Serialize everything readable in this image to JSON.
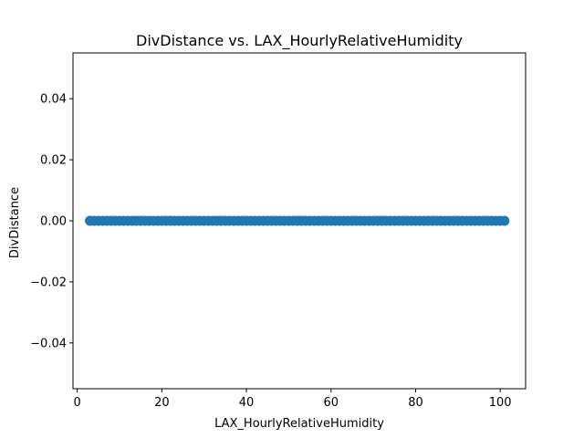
{
  "chart_data": {
    "type": "scatter",
    "title": "DivDistance vs. LAX_HourlyRelativeHumidity",
    "xlabel": "LAX_HourlyRelativeHumidity",
    "ylabel": "DivDistance",
    "xlim": [
      -1,
      106
    ],
    "ylim": [
      -0.055,
      0.055
    ],
    "xticks": [
      0,
      20,
      40,
      60,
      80,
      100
    ],
    "xtick_labels": [
      "0",
      "20",
      "40",
      "60",
      "80",
      "100"
    ],
    "yticks": [
      -0.04,
      -0.02,
      0.0,
      0.02,
      0.04
    ],
    "ytick_labels": [
      "−0.04",
      "−0.02",
      "0.00",
      "0.02",
      "0.04"
    ],
    "grid": false,
    "series": [
      {
        "color": "#1f77b4",
        "x_range": [
          3,
          101
        ],
        "y_value": 0.0,
        "points": [
          [
            3,
            0
          ],
          [
            4,
            0
          ],
          [
            5,
            0
          ],
          [
            6,
            0
          ],
          [
            7,
            0
          ],
          [
            8,
            0
          ],
          [
            9,
            0
          ],
          [
            10,
            0
          ],
          [
            11,
            0
          ],
          [
            12,
            0
          ],
          [
            13,
            0
          ],
          [
            14,
            0
          ],
          [
            15,
            0
          ],
          [
            16,
            0
          ],
          [
            17,
            0
          ],
          [
            18,
            0
          ],
          [
            19,
            0
          ],
          [
            20,
            0
          ],
          [
            21,
            0
          ],
          [
            22,
            0
          ],
          [
            23,
            0
          ],
          [
            24,
            0
          ],
          [
            25,
            0
          ],
          [
            26,
            0
          ],
          [
            27,
            0
          ],
          [
            28,
            0
          ],
          [
            29,
            0
          ],
          [
            30,
            0
          ],
          [
            31,
            0
          ],
          [
            32,
            0
          ],
          [
            33,
            0
          ],
          [
            34,
            0
          ],
          [
            35,
            0
          ],
          [
            36,
            0
          ],
          [
            37,
            0
          ],
          [
            38,
            0
          ],
          [
            39,
            0
          ],
          [
            40,
            0
          ],
          [
            41,
            0
          ],
          [
            42,
            0
          ],
          [
            43,
            0
          ],
          [
            44,
            0
          ],
          [
            45,
            0
          ],
          [
            46,
            0
          ],
          [
            47,
            0
          ],
          [
            48,
            0
          ],
          [
            49,
            0
          ],
          [
            50,
            0
          ],
          [
            51,
            0
          ],
          [
            52,
            0
          ],
          [
            53,
            0
          ],
          [
            54,
            0
          ],
          [
            55,
            0
          ],
          [
            56,
            0
          ],
          [
            57,
            0
          ],
          [
            58,
            0
          ],
          [
            59,
            0
          ],
          [
            60,
            0
          ],
          [
            61,
            0
          ],
          [
            62,
            0
          ],
          [
            63,
            0
          ],
          [
            64,
            0
          ],
          [
            65,
            0
          ],
          [
            66,
            0
          ],
          [
            67,
            0
          ],
          [
            68,
            0
          ],
          [
            69,
            0
          ],
          [
            70,
            0
          ],
          [
            71,
            0
          ],
          [
            72,
            0
          ],
          [
            73,
            0
          ],
          [
            74,
            0
          ],
          [
            75,
            0
          ],
          [
            76,
            0
          ],
          [
            77,
            0
          ],
          [
            78,
            0
          ],
          [
            79,
            0
          ],
          [
            80,
            0
          ],
          [
            81,
            0
          ],
          [
            82,
            0
          ],
          [
            83,
            0
          ],
          [
            84,
            0
          ],
          [
            85,
            0
          ],
          [
            86,
            0
          ],
          [
            87,
            0
          ],
          [
            88,
            0
          ],
          [
            89,
            0
          ],
          [
            90,
            0
          ],
          [
            91,
            0
          ],
          [
            92,
            0
          ],
          [
            93,
            0
          ],
          [
            94,
            0
          ],
          [
            95,
            0
          ],
          [
            96,
            0
          ],
          [
            97,
            0
          ],
          [
            98,
            0
          ],
          [
            99,
            0
          ],
          [
            100,
            0
          ],
          [
            101,
            0
          ]
        ]
      }
    ]
  }
}
